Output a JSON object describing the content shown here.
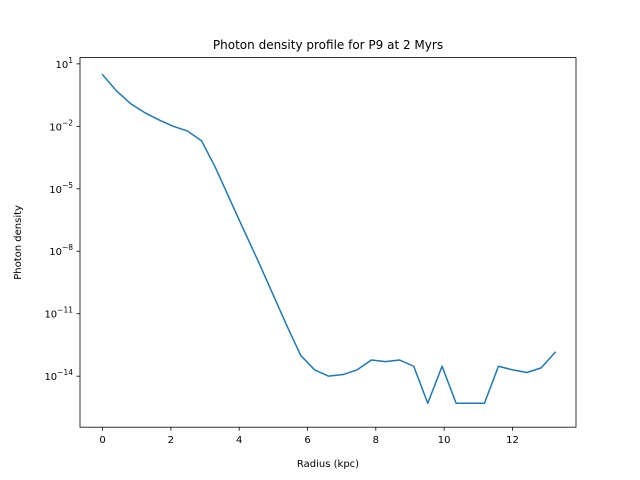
{
  "chart_data": {
    "type": "line",
    "title": "Photon density profile for P9 at 2 Myrs",
    "xlabel": "Radius (kpc)",
    "ylabel": "Photon density",
    "xlim": [
      -0.66,
      13.86
    ],
    "ylim_log10": [
      -16.45,
      1.3
    ],
    "y_scale": "log",
    "grid": false,
    "x_ticks": [
      {
        "value": 0,
        "label": "0"
      },
      {
        "value": 2,
        "label": "2"
      },
      {
        "value": 4,
        "label": "4"
      },
      {
        "value": 6,
        "label": "6"
      },
      {
        "value": 8,
        "label": "8"
      },
      {
        "value": 10,
        "label": "10"
      },
      {
        "value": 12,
        "label": "12"
      }
    ],
    "y_ticks": [
      {
        "exp": 1,
        "base": "10",
        "sup": "1"
      },
      {
        "exp": -2,
        "base": "10",
        "sup": "−2"
      },
      {
        "exp": -5,
        "base": "10",
        "sup": "−5"
      },
      {
        "exp": -8,
        "base": "10",
        "sup": "−8"
      },
      {
        "exp": -11,
        "base": "10",
        "sup": "−11"
      },
      {
        "exp": -14,
        "base": "10",
        "sup": "−14"
      }
    ],
    "series": [
      {
        "color": "#1f77b4",
        "x": [
          0,
          0.41,
          0.83,
          1.24,
          1.66,
          2.07,
          2.48,
          2.9,
          3.31,
          3.73,
          4.14,
          4.55,
          4.97,
          5.38,
          5.8,
          6.21,
          6.62,
          7.04,
          7.45,
          7.87,
          8.28,
          8.69,
          9.11,
          9.52,
          9.94,
          10.35,
          10.77,
          11.18,
          11.59,
          12.01,
          12.42,
          12.84,
          13.25
        ],
        "y": [
          3.0,
          0.5,
          0.12,
          0.045,
          0.02,
          0.01,
          0.006,
          0.002,
          0.0001,
          3e-06,
          1e-07,
          3.5e-09,
          1e-10,
          3e-12,
          1e-13,
          2e-14,
          1e-14,
          1.2e-14,
          2e-14,
          6e-14,
          5e-14,
          6e-14,
          3e-14,
          5e-16,
          3e-14,
          5e-16,
          5e-16,
          5e-16,
          3e-14,
          2e-14,
          1.5e-14,
          2.5e-14,
          1.4e-13
        ]
      }
    ]
  }
}
